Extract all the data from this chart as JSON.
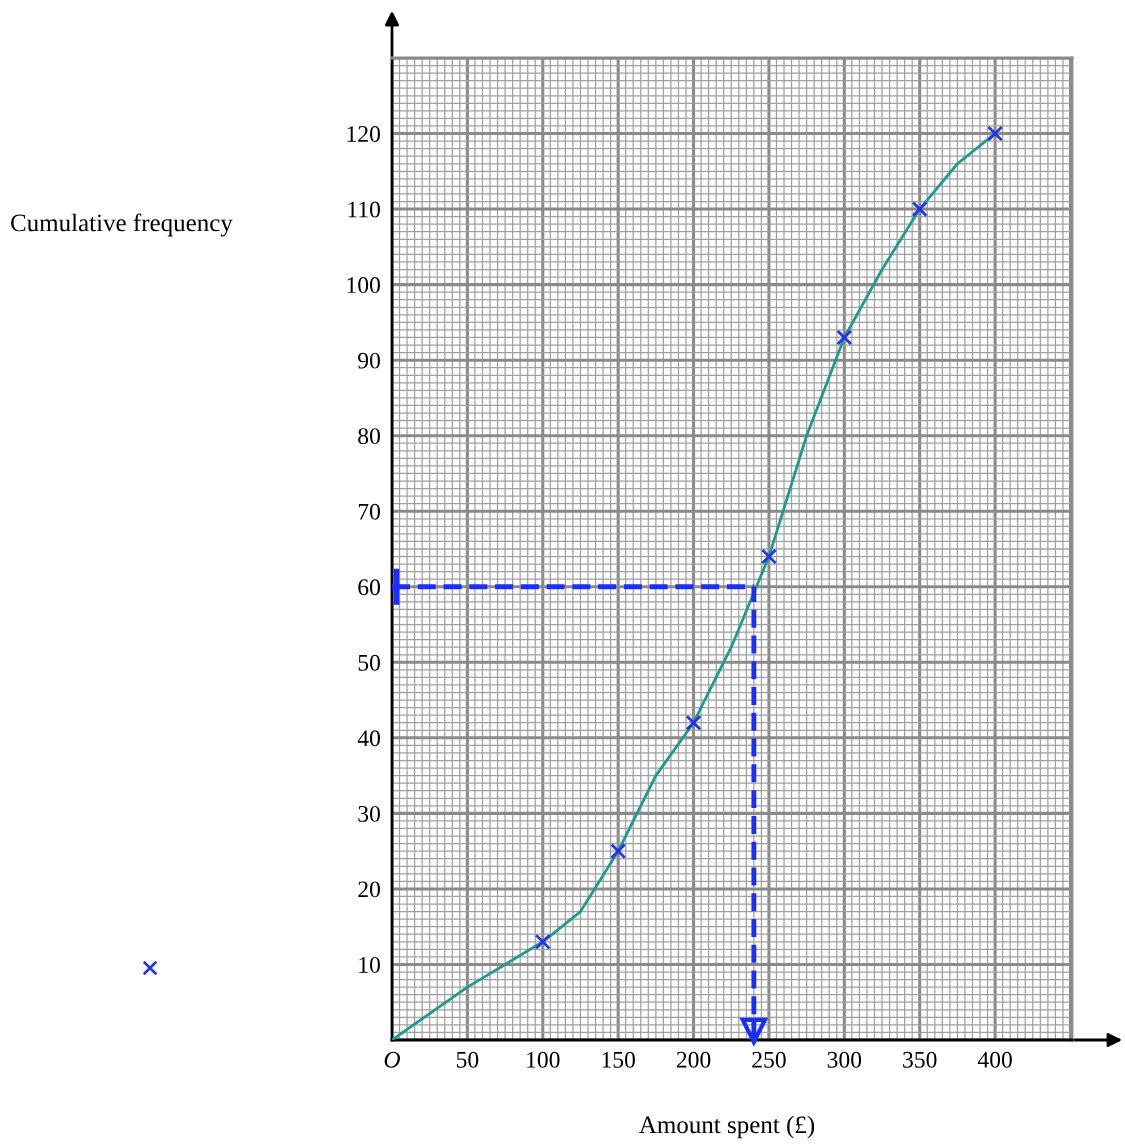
{
  "chart_data": {
    "type": "line",
    "xlabel": "Amount spent (£)",
    "ylabel": "Cumulative frequency",
    "xlim": [
      0,
      451
    ],
    "ylim": [
      0,
      130
    ],
    "xticks": [
      {
        "value": 0,
        "label": "O"
      },
      50,
      100,
      150,
      200,
      250,
      300,
      350,
      400
    ],
    "yticks": [
      10,
      20,
      30,
      40,
      50,
      60,
      70,
      80,
      90,
      100,
      110,
      120
    ],
    "grid": true,
    "series": [
      {
        "color": "#1f9a8f",
        "marker": "none",
        "line_style": "solid",
        "x": [
          0,
          50,
          100,
          125,
          150,
          175,
          200,
          225,
          250,
          275,
          300,
          325,
          350,
          375,
          400
        ],
        "values": [
          0,
          7,
          13,
          17,
          25,
          35,
          42,
          52,
          64,
          80,
          93,
          102,
          110,
          116,
          120
        ]
      },
      {
        "type": "scatter",
        "color": "#2233ee",
        "marker": "cross",
        "x": [
          100,
          150,
          200,
          250,
          300,
          350,
          400
        ],
        "values": [
          13,
          25,
          42,
          64,
          93,
          110,
          120
        ]
      }
    ],
    "ref_lines": [
      {
        "axis": "y",
        "value": 60,
        "label": null,
        "color": "#1a2eff",
        "line_style": "dashed"
      },
      {
        "axis": "x",
        "value": 240,
        "label": null,
        "color": "#1a2eff",
        "line_style": "dashed"
      }
    ]
  }
}
